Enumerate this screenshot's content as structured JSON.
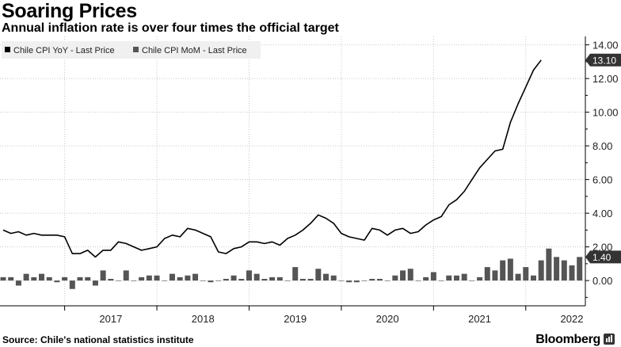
{
  "title": "Soaring Prices",
  "subtitle": "Annual inflation rate is over four times the official target",
  "source": "Source: Chile's national statistics institute",
  "brand": "Bloomberg",
  "colors": {
    "line": "#000000",
    "bars": "#555555",
    "badge": "#333333",
    "grid": "#c8c8c8"
  },
  "chart_data": {
    "type": "line",
    "title": "Soaring Prices",
    "ylim": [
      -1.5,
      14.5
    ],
    "y_ticks": [
      "14.00",
      "12.00",
      "10.00",
      "8.00",
      "6.00",
      "4.00",
      "2.00",
      "0.00"
    ],
    "y_tick_values": [
      14,
      12,
      10,
      8,
      6,
      4,
      2,
      0
    ],
    "x_ticks": [
      "2017",
      "2018",
      "2019",
      "2020",
      "2021",
      "2022"
    ],
    "x_start": "2016-05",
    "x_end": "2022-07",
    "grid": true,
    "legend_position": "top-left",
    "last_value_labels": [
      "13.10",
      "1.40"
    ],
    "series": [
      {
        "name": "Chile CPI YoY - Last Price",
        "type": "line",
        "values": [
          3.0,
          2.8,
          2.9,
          2.7,
          2.8,
          2.7,
          2.7,
          2.7,
          2.6,
          1.6,
          1.6,
          1.8,
          1.4,
          1.8,
          1.8,
          2.3,
          2.2,
          2.0,
          1.8,
          1.9,
          2.0,
          2.5,
          2.7,
          2.6,
          3.1,
          3.0,
          2.8,
          2.6,
          1.7,
          1.6,
          1.9,
          2.0,
          2.3,
          2.3,
          2.2,
          2.3,
          2.1,
          2.5,
          2.7,
          3.0,
          3.4,
          3.9,
          3.7,
          3.4,
          2.8,
          2.6,
          2.5,
          2.4,
          3.1,
          3.0,
          2.7,
          3.0,
          3.1,
          2.8,
          2.9,
          3.3,
          3.6,
          3.8,
          4.5,
          4.8,
          5.3,
          6.0,
          6.7,
          7.2,
          7.7,
          7.8,
          9.4,
          10.5,
          11.5,
          12.5,
          13.1
        ]
      },
      {
        "name": "Chile CPI MoM - Last Price",
        "type": "bar",
        "values": [
          0.2,
          0.2,
          -0.3,
          0.4,
          0.2,
          0.4,
          0.2,
          -0.1,
          0.2,
          -0.5,
          0.2,
          0.2,
          -0.3,
          0.6,
          0.1,
          0.0,
          0.6,
          0.0,
          0.2,
          0.3,
          0.3,
          0.0,
          0.4,
          0.2,
          0.3,
          0.4,
          0.0,
          -0.1,
          0.0,
          0.1,
          0.3,
          0.1,
          0.6,
          0.4,
          0.1,
          0.2,
          0.2,
          0.0,
          0.8,
          0.1,
          0.1,
          0.7,
          0.4,
          0.3,
          0.0,
          -0.1,
          -0.1,
          0.0,
          0.1,
          0.1,
          0.0,
          0.3,
          0.6,
          0.7,
          0.0,
          0.2,
          0.5,
          0.0,
          0.3,
          0.3,
          0.4,
          0.0,
          0.2,
          0.8,
          0.6,
          1.2,
          1.3,
          0.4,
          0.8,
          0.3,
          1.2,
          1.9,
          1.4,
          1.2,
          0.9,
          1.4
        ]
      }
    ]
  }
}
